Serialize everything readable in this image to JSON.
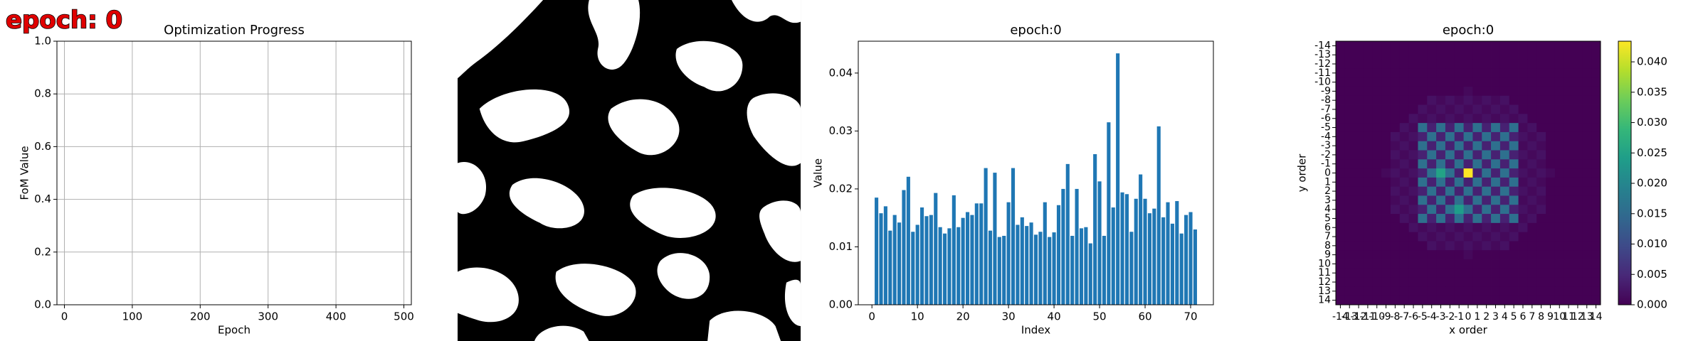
{
  "overlay_label": "epoch: 0",
  "chart_data": [
    {
      "type": "line",
      "title": "Optimization Progress",
      "xlabel": "Epoch",
      "ylabel": "FoM Value",
      "xlim": [
        -11,
        511
      ],
      "xticks": [
        0,
        100,
        200,
        300,
        400,
        500
      ],
      "ylim": [
        0,
        1
      ],
      "yticks": [
        {
          "value": 0,
          "label": "0.0"
        },
        0.2,
        0.4,
        0.6,
        0.8,
        {
          "value": 1,
          "label": "1.0"
        }
      ],
      "grid": true
    },
    {
      "type": "bar",
      "title": "epoch:0",
      "xlabel": "Index",
      "ylabel": "Value",
      "color": "#1f77b4",
      "x": [
        1,
        2,
        3,
        4,
        5,
        6,
        7,
        8,
        9,
        10,
        11,
        12,
        13,
        14,
        15,
        16,
        17,
        18,
        19,
        20,
        21,
        22,
        23,
        24,
        25,
        26,
        27,
        28,
        29,
        30,
        31,
        32,
        33,
        34,
        35,
        36,
        37,
        38,
        39,
        40,
        41,
        42,
        43,
        44,
        45,
        46,
        47,
        48,
        49,
        50,
        51,
        52,
        53,
        54,
        55,
        56,
        57,
        58,
        59,
        60,
        61,
        62,
        63,
        64,
        65,
        66,
        67,
        68,
        69,
        70,
        71
      ],
      "values": [
        0.0185,
        0.0158,
        0.017,
        0.0128,
        0.0155,
        0.0142,
        0.0198,
        0.0221,
        0.0126,
        0.0138,
        0.0168,
        0.0153,
        0.0155,
        0.0193,
        0.0134,
        0.0123,
        0.0132,
        0.0189,
        0.0134,
        0.015,
        0.016,
        0.0155,
        0.0175,
        0.0175,
        0.0236,
        0.0128,
        0.0228,
        0.0117,
        0.0119,
        0.0177,
        0.0236,
        0.0138,
        0.0151,
        0.0136,
        0.0142,
        0.0121,
        0.0126,
        0.0177,
        0.0117,
        0.0125,
        0.0172,
        0.02,
        0.0243,
        0.0119,
        0.02,
        0.0132,
        0.0134,
        0.0106,
        0.026,
        0.0213,
        0.0119,
        0.0315,
        0.0168,
        0.0434,
        0.0194,
        0.0191,
        0.0126,
        0.0183,
        0.0225,
        0.0183,
        0.0158,
        0.0166,
        0.0308,
        0.0151,
        0.0177,
        0.014,
        0.0179,
        0.0123,
        0.0155,
        0.016,
        0.013
      ],
      "xlim": [
        -3,
        75
      ],
      "xticks": [
        0,
        10,
        20,
        30,
        40,
        50,
        60,
        70
      ],
      "ylim": [
        0,
        0.0455
      ],
      "yticks": [
        {
          "value": 0,
          "label": "0.00"
        },
        0.01,
        0.02,
        0.03,
        0.04
      ]
    },
    {
      "type": "heatmap",
      "title": "epoch:0",
      "xlabel": "x order",
      "ylabel": "y order",
      "colormap": "viridis",
      "x": [
        -14,
        -13,
        -12,
        -11,
        -10,
        -9,
        -8,
        -7,
        -6,
        -5,
        -4,
        -3,
        -2,
        -1,
        0,
        1,
        2,
        3,
        4,
        5,
        6,
        7,
        8,
        9,
        10,
        11,
        12,
        13,
        14
      ],
      "y": [
        -14,
        -13,
        -12,
        -11,
        -10,
        -9,
        -8,
        -7,
        -6,
        -5,
        -4,
        -3,
        -2,
        -1,
        0,
        1,
        2,
        3,
        4,
        5,
        6,
        7,
        8,
        9,
        10,
        11,
        12,
        13,
        14
      ],
      "z": [
        [
          0,
          0,
          0,
          0,
          0,
          0,
          0,
          0,
          0,
          0,
          0,
          0,
          0,
          0,
          0,
          0,
          0,
          0,
          0,
          0,
          0,
          0,
          0,
          0,
          0,
          0,
          0,
          0,
          0
        ],
        [
          0,
          0,
          0,
          0,
          0,
          0,
          0,
          0,
          0,
          0,
          0,
          0,
          0,
          0,
          0,
          0,
          0,
          0,
          0,
          0,
          0,
          0,
          0,
          0,
          0,
          0,
          0,
          0,
          0
        ],
        [
          0,
          0,
          0,
          0,
          0,
          0,
          0,
          0,
          0,
          0,
          0,
          0,
          0,
          0,
          0,
          0,
          0,
          0,
          0,
          0,
          0,
          0,
          0,
          0,
          0,
          0,
          0,
          0,
          0
        ],
        [
          0,
          0,
          0,
          0,
          0,
          0,
          0,
          0,
          0,
          0,
          0,
          0,
          0,
          0,
          0,
          0,
          0,
          0,
          0,
          0,
          0,
          0,
          0,
          0,
          0,
          0,
          0,
          0,
          0
        ],
        [
          0,
          0,
          0,
          0,
          0,
          0,
          0,
          0,
          0,
          0,
          0,
          0,
          0,
          0,
          0,
          0,
          0,
          0,
          0,
          0,
          0,
          0,
          0,
          0,
          0,
          0,
          0,
          0,
          0
        ],
        [
          0,
          0,
          0,
          0,
          0,
          0,
          0,
          0,
          0,
          0,
          0,
          0,
          0,
          0,
          0.001,
          0,
          0,
          0,
          0,
          0,
          0,
          0,
          0,
          0,
          0,
          0,
          0,
          0,
          0
        ],
        [
          0,
          0,
          0,
          0,
          0,
          0,
          0,
          0,
          0,
          0,
          0.002,
          0.001,
          0.002,
          0.001,
          0.002,
          0.001,
          0.002,
          0.001,
          0.002,
          0,
          0,
          0,
          0,
          0,
          0,
          0,
          0,
          0,
          0
        ],
        [
          0,
          0,
          0,
          0,
          0,
          0,
          0,
          0,
          0,
          0.002,
          0.001,
          0.002,
          0.001,
          0.002,
          0.001,
          0.002,
          0.001,
          0.002,
          0.001,
          0.002,
          0,
          0,
          0,
          0,
          0,
          0,
          0,
          0,
          0
        ],
        [
          0,
          0,
          0,
          0,
          0,
          0,
          0,
          0,
          0.002,
          0.001,
          0.002,
          0.001,
          0.002,
          0.001,
          0.002,
          0.001,
          0.002,
          0.001,
          0.002,
          0.001,
          0.002,
          0,
          0,
          0,
          0,
          0,
          0,
          0,
          0
        ],
        [
          0,
          0,
          0,
          0,
          0,
          0,
          0,
          0.002,
          0.001,
          0.016,
          0.004,
          0.016,
          0.004,
          0.016,
          0.004,
          0.016,
          0.004,
          0.016,
          0.004,
          0.016,
          0.001,
          0.002,
          0,
          0,
          0,
          0,
          0,
          0,
          0
        ],
        [
          0,
          0,
          0,
          0,
          0,
          0,
          0.002,
          0.001,
          0.002,
          0.004,
          0.016,
          0.004,
          0.016,
          0.004,
          0.016,
          0.004,
          0.016,
          0.004,
          0.016,
          0.004,
          0.002,
          0.001,
          0.002,
          0,
          0,
          0,
          0,
          0,
          0
        ],
        [
          0,
          0,
          0,
          0,
          0,
          0,
          0.001,
          0.002,
          0.001,
          0.016,
          0.004,
          0.016,
          0.004,
          0.016,
          0.004,
          0.016,
          0.004,
          0.016,
          0.004,
          0.016,
          0.001,
          0.002,
          0.001,
          0,
          0,
          0,
          0,
          0,
          0
        ],
        [
          0,
          0,
          0,
          0,
          0,
          0,
          0.002,
          0.001,
          0.002,
          0.004,
          0.016,
          0.004,
          0.016,
          0.004,
          0.016,
          0.004,
          0.016,
          0.004,
          0.016,
          0.004,
          0.002,
          0.001,
          0.002,
          0,
          0,
          0,
          0,
          0,
          0
        ],
        [
          0,
          0,
          0,
          0,
          0,
          0,
          0.001,
          0.002,
          0.001,
          0.016,
          0.004,
          0.016,
          0.004,
          0.016,
          0.004,
          0.016,
          0.004,
          0.016,
          0.004,
          0.016,
          0.001,
          0.002,
          0.001,
          0,
          0,
          0,
          0,
          0,
          0
        ],
        [
          0,
          0,
          0,
          0,
          0,
          0.001,
          0.002,
          0.001,
          0.002,
          0.004,
          0.016,
          0.025,
          0.016,
          0.004,
          0.0434,
          0.004,
          0.016,
          0.004,
          0.016,
          0.004,
          0.002,
          0.001,
          0.002,
          0.001,
          0,
          0,
          0,
          0,
          0
        ],
        [
          0,
          0,
          0,
          0,
          0,
          0,
          0.001,
          0.002,
          0.001,
          0.016,
          0.004,
          0.016,
          0.004,
          0.016,
          0.004,
          0.016,
          0.004,
          0.016,
          0.004,
          0.016,
          0.001,
          0.002,
          0.001,
          0,
          0,
          0,
          0,
          0,
          0
        ],
        [
          0,
          0,
          0,
          0,
          0,
          0,
          0.002,
          0.001,
          0.002,
          0.004,
          0.016,
          0.004,
          0.016,
          0.004,
          0.016,
          0.004,
          0.016,
          0.004,
          0.016,
          0.004,
          0.002,
          0.001,
          0.002,
          0,
          0,
          0,
          0,
          0,
          0
        ],
        [
          0,
          0,
          0,
          0,
          0,
          0,
          0.001,
          0.002,
          0.001,
          0.016,
          0.004,
          0.016,
          0.004,
          0.016,
          0.004,
          0.016,
          0.004,
          0.016,
          0.004,
          0.016,
          0.001,
          0.002,
          0.001,
          0,
          0,
          0,
          0,
          0,
          0
        ],
        [
          0,
          0,
          0,
          0,
          0,
          0,
          0.002,
          0.001,
          0.002,
          0.004,
          0.016,
          0.004,
          0.016,
          0.024,
          0.016,
          0.004,
          0.016,
          0.004,
          0.016,
          0.004,
          0.002,
          0.001,
          0.002,
          0,
          0,
          0,
          0,
          0,
          0
        ],
        [
          0,
          0,
          0,
          0,
          0,
          0,
          0,
          0.002,
          0.001,
          0.016,
          0.004,
          0.016,
          0.004,
          0.016,
          0.004,
          0.016,
          0.004,
          0.016,
          0.004,
          0.016,
          0.001,
          0.002,
          0,
          0,
          0,
          0,
          0,
          0,
          0
        ],
        [
          0,
          0,
          0,
          0,
          0,
          0,
          0,
          0,
          0.002,
          0.001,
          0.002,
          0.001,
          0.002,
          0.001,
          0.002,
          0.001,
          0.002,
          0.001,
          0.002,
          0.001,
          0.002,
          0,
          0,
          0,
          0,
          0,
          0,
          0,
          0
        ],
        [
          0,
          0,
          0,
          0,
          0,
          0,
          0,
          0,
          0,
          0.002,
          0.001,
          0.002,
          0.001,
          0.002,
          0.001,
          0.002,
          0.001,
          0.002,
          0.001,
          0.002,
          0,
          0,
          0,
          0,
          0,
          0,
          0,
          0,
          0
        ],
        [
          0,
          0,
          0,
          0,
          0,
          0,
          0,
          0,
          0,
          0,
          0.002,
          0.001,
          0.002,
          0.001,
          0.002,
          0.001,
          0.002,
          0.001,
          0.002,
          0,
          0,
          0,
          0,
          0,
          0,
          0,
          0,
          0,
          0
        ],
        [
          0,
          0,
          0,
          0,
          0,
          0,
          0,
          0,
          0,
          0,
          0,
          0,
          0,
          0,
          0.001,
          0,
          0,
          0,
          0,
          0,
          0,
          0,
          0,
          0,
          0,
          0,
          0,
          0,
          0
        ],
        [
          0,
          0,
          0,
          0,
          0,
          0,
          0,
          0,
          0,
          0,
          0,
          0,
          0,
          0,
          0,
          0,
          0,
          0,
          0,
          0,
          0,
          0,
          0,
          0,
          0,
          0,
          0,
          0,
          0
        ],
        [
          0,
          0,
          0,
          0,
          0,
          0,
          0,
          0,
          0,
          0,
          0,
          0,
          0,
          0,
          0,
          0,
          0,
          0,
          0,
          0,
          0,
          0,
          0,
          0,
          0,
          0,
          0,
          0,
          0
        ],
        [
          0,
          0,
          0,
          0,
          0,
          0,
          0,
          0,
          0,
          0,
          0,
          0,
          0,
          0,
          0,
          0,
          0,
          0,
          0,
          0,
          0,
          0,
          0,
          0,
          0,
          0,
          0,
          0,
          0
        ],
        [
          0,
          0,
          0,
          0,
          0,
          0,
          0,
          0,
          0,
          0,
          0,
          0,
          0,
          0,
          0,
          0,
          0,
          0,
          0,
          0,
          0,
          0,
          0,
          0,
          0,
          0,
          0,
          0,
          0
        ],
        [
          0,
          0,
          0,
          0,
          0,
          0,
          0,
          0,
          0,
          0,
          0,
          0,
          0,
          0,
          0,
          0,
          0,
          0,
          0,
          0,
          0,
          0,
          0,
          0,
          0,
          0,
          0,
          0,
          0
        ]
      ],
      "clim": [
        0,
        0.0434
      ],
      "cticks": [
        {
          "value": 0,
          "label": "0.000"
        },
        0.005,
        {
          "value": 0.01,
          "label": "0.010"
        },
        0.015,
        {
          "value": 0.02,
          "label": "0.020"
        },
        0.025,
        {
          "value": 0.03,
          "label": "0.030"
        },
        0.035,
        {
          "value": 0.04,
          "label": "0.040"
        }
      ]
    }
  ]
}
